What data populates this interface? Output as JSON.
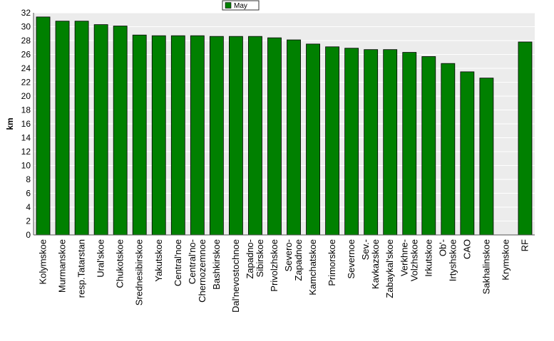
{
  "chart_data": {
    "type": "bar",
    "title": "",
    "xlabel": "",
    "ylabel": "km",
    "ylim": [
      0,
      32
    ],
    "ytick_step": 2,
    "grid": true,
    "legend_position": "top-center",
    "series": [
      {
        "name": "May",
        "color": "#008000",
        "values": [
          31.4,
          30.8,
          30.8,
          30.3,
          30.1,
          28.8,
          28.7,
          28.7,
          28.7,
          28.6,
          28.6,
          28.6,
          28.4,
          28.1,
          27.5,
          27.1,
          26.9,
          26.7,
          26.7,
          26.3,
          25.7,
          24.7,
          23.5,
          22.6,
          null,
          27.8
        ]
      }
    ],
    "categories": [
      [
        "Kolymskoe"
      ],
      [
        "Murmanskoe"
      ],
      [
        "resp.Tatarstan"
      ],
      [
        "Ural'skoe"
      ],
      [
        "Chukotskoe"
      ],
      [
        "Srednesibirskoe"
      ],
      [
        "Yakutskoe"
      ],
      [
        "Central'noe"
      ],
      [
        "Central'no-",
        "Chernozemnoe"
      ],
      [
        "Bashkirskoe"
      ],
      [
        "Dal'nevostochnoe"
      ],
      [
        "Zapadno-",
        "Sibirskoe"
      ],
      [
        "Privolzhskoe"
      ],
      [
        "Severo-",
        "Zapadnoe"
      ],
      [
        "Kamchatskoe"
      ],
      [
        "Primorskoe"
      ],
      [
        "Severnoe"
      ],
      [
        "Sev.-",
        "Kavkazskoe"
      ],
      [
        "Zabaykal'skoe"
      ],
      [
        "Verkhne-",
        "Volzhskoe"
      ],
      [
        "Irkutskoe"
      ],
      [
        "Ob'-",
        "Irtyshskoe"
      ],
      [
        "CAO"
      ],
      [
        "Sakhalinskoe"
      ],
      [
        "Krymskoe"
      ],
      [
        "RF"
      ]
    ]
  }
}
